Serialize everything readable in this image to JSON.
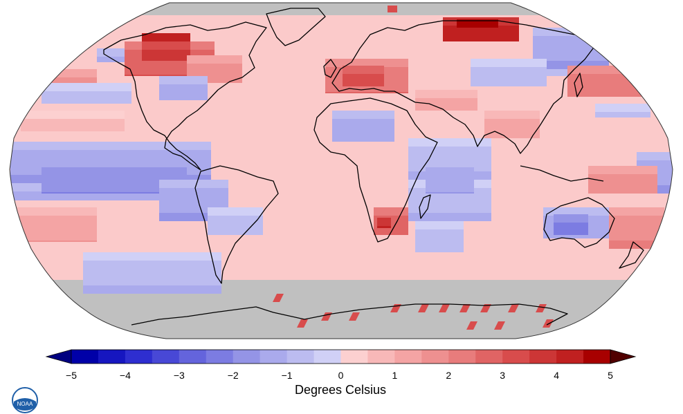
{
  "map": {
    "projection": "Robinson",
    "land_outline_color": "#000000",
    "missing_data_color": "#c0c0c0",
    "ocean_base_color": "#fbcaca"
  },
  "legend": {
    "ticks": [
      "−5",
      "−4",
      "−3",
      "−2",
      "−1",
      "0",
      "1",
      "2",
      "3",
      "4",
      "5"
    ],
    "units": "Degrees Celsius",
    "colors": [
      "#0000a8",
      "#1616c0",
      "#2e2ed0",
      "#4848d6",
      "#6464dc",
      "#7c7ce2",
      "#9494e6",
      "#aaaaec",
      "#bcbcf0",
      "#d0d0f6",
      "#fcd0d0",
      "#f8b8b8",
      "#f4a4a4",
      "#ee9090",
      "#e87c7c",
      "#e06464",
      "#d84c4c",
      "#cc3636",
      "#c02020",
      "#a80000"
    ],
    "under_color": "#000080",
    "over_color": "#500000"
  },
  "logo": {
    "name": "noaa-logo",
    "text": "NOAA"
  }
}
